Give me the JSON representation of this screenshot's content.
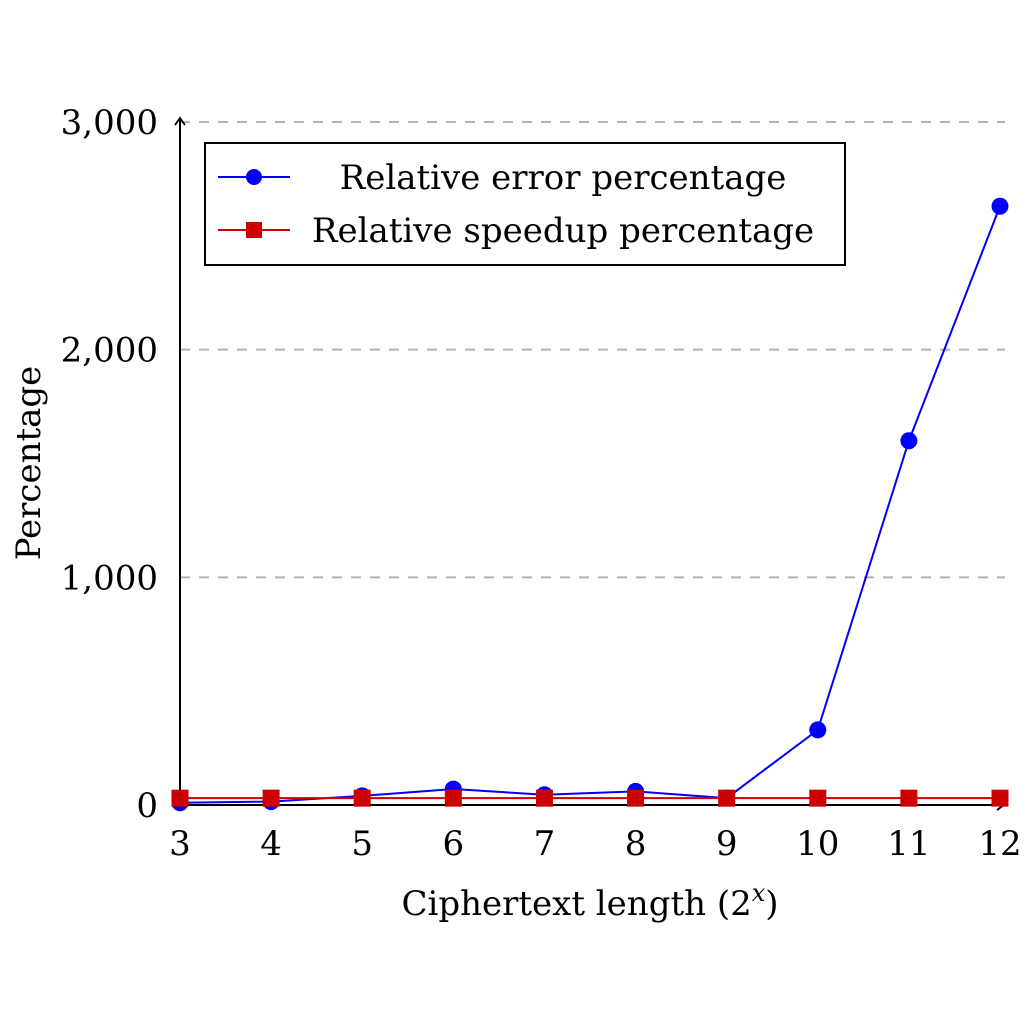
{
  "chart_data": {
    "type": "line",
    "title": "",
    "xlabel": "Ciphertext length (2",
    "xlabel_sup": "x",
    "xlabel_suffix": ")",
    "ylabel": "Percentage",
    "x": [
      3,
      4,
      5,
      6,
      7,
      8,
      9,
      10,
      11,
      12
    ],
    "xlim": [
      3,
      12
    ],
    "ylim": [
      0,
      3000
    ],
    "yticks": [
      0,
      1000,
      2000,
      3000
    ],
    "ytick_labels": [
      "0",
      "1,000",
      "2,000",
      "3,000"
    ],
    "xtick_labels": [
      "3",
      "4",
      "5",
      "6",
      "7",
      "8",
      "9",
      "10",
      "11",
      "12"
    ],
    "grid": "horizontal-dashed",
    "legend_position": "top-left",
    "series": [
      {
        "name": "Relative error percentage",
        "color": "#0000ff",
        "marker": "circle",
        "values": [
          10,
          15,
          40,
          70,
          45,
          60,
          30,
          330,
          1600,
          2630
        ]
      },
      {
        "name": "Relative speedup percentage",
        "color": "#cc0000",
        "marker": "square",
        "values": [
          30,
          30,
          30,
          30,
          30,
          30,
          30,
          30,
          30,
          30
        ]
      }
    ]
  }
}
